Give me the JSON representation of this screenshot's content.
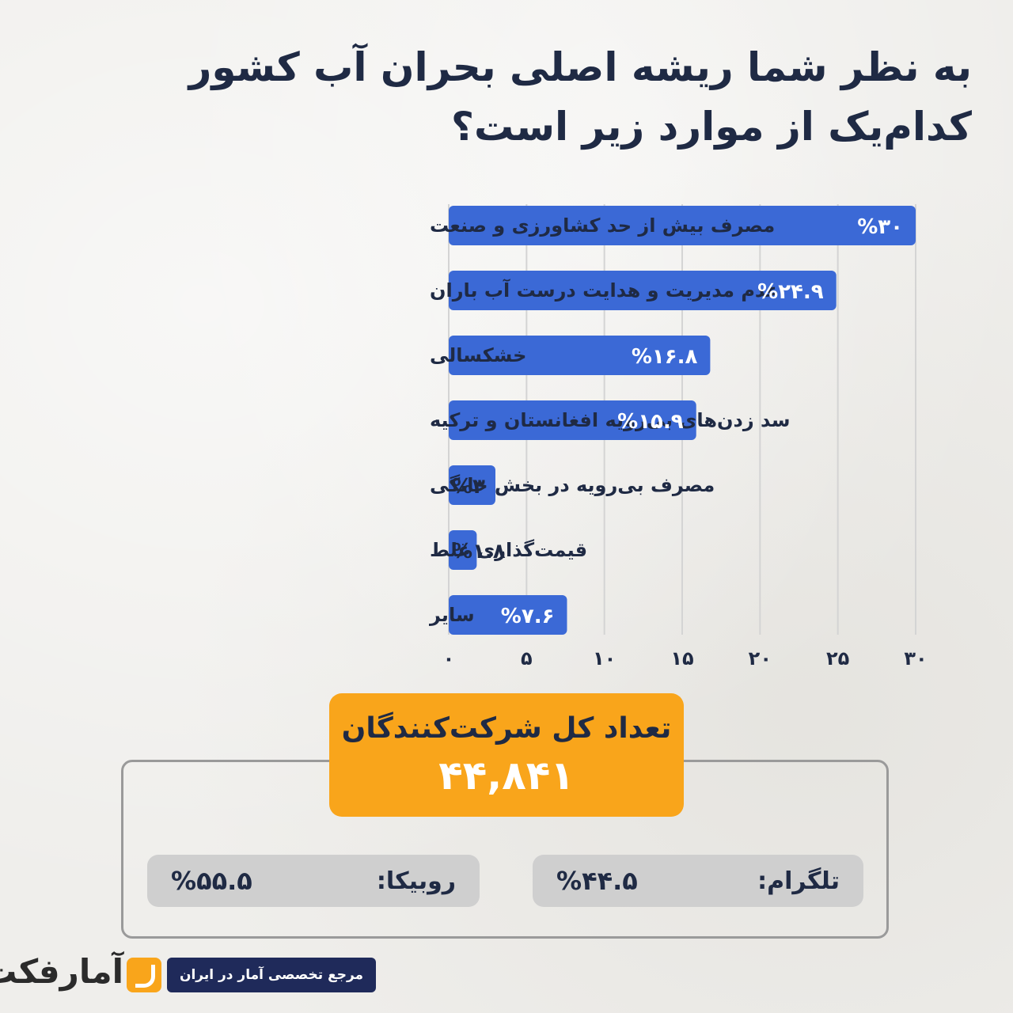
{
  "title": "به نظر شما ریشه اصلی بحران آب کشور کدام‌یک از موارد زیر است؟",
  "colors": {
    "bar": "#3b69d6",
    "accent": "#f9a51b",
    "navy": "#1f2a44",
    "pill": "#cfcfcf"
  },
  "chart_data": {
    "type": "bar",
    "orientation": "horizontal",
    "categories": [
      "مصرف بیش از حد کشاورزی و صنعت",
      "عدم مدیریت و هدایت درست آب باران",
      "خشکسالی",
      "سد زدن‌های بی‌رویه افغانستان و ترکیه",
      "مصرف بی‌رویه در بخش خانگی",
      "قیمت‌گذاری غلط",
      "سایر"
    ],
    "values": [
      30,
      24.9,
      16.8,
      15.9,
      3,
      1.8,
      7.6
    ],
    "value_labels": [
      "%۳۰",
      "%۲۴.۹",
      "%۱۶.۸",
      "%۱۵.۹",
      "%۳",
      "%۱.۸",
      "%۷.۶"
    ],
    "x_ticks": [
      0,
      5,
      10,
      15,
      20,
      25,
      30
    ],
    "x_tick_labels": [
      "۰",
      "۵",
      "۱۰",
      "۱۵",
      "۲۰",
      "۲۵",
      "۳۰"
    ],
    "xlim": [
      0,
      30
    ],
    "grid": "vertical"
  },
  "total": {
    "label": "تعداد کل شرکت‌کنندگان",
    "value": "۴۴,۸۴۱"
  },
  "platforms": [
    {
      "label": "تلگرام:",
      "value": "%۴۴.۵"
    },
    {
      "label": "روبیکا:",
      "value": "%۵۵.۵"
    }
  ],
  "footer": {
    "tagline": "مرجع تخصصی آمار در ایران",
    "brand": "آمارفکت"
  }
}
